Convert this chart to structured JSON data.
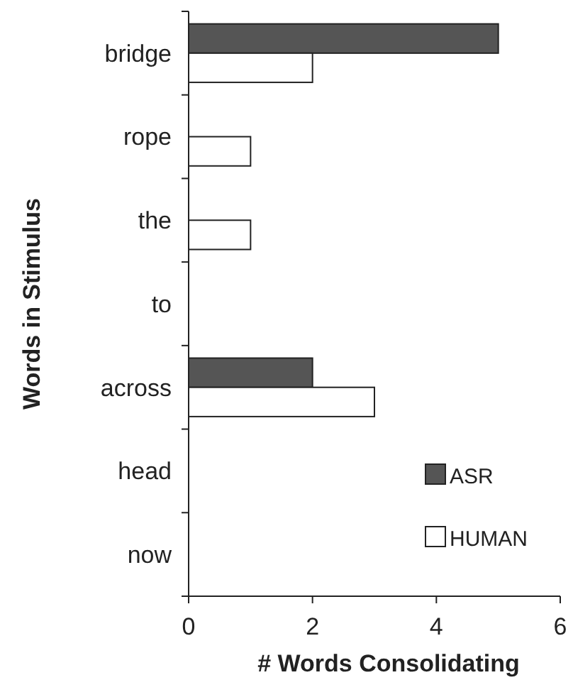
{
  "chart_data": {
    "type": "bar",
    "orientation": "horizontal",
    "xlabel": "# Words Consolidating",
    "ylabel": "Words in Stimulus",
    "categories": [
      "bridge",
      "rope",
      "the",
      "to",
      "across",
      "head",
      "now"
    ],
    "series": [
      {
        "name": "ASR",
        "color": "#555555",
        "values": [
          5,
          0,
          0,
          0,
          2,
          0,
          0
        ]
      },
      {
        "name": "HUMAN",
        "color": "#ffffff",
        "values": [
          2,
          1,
          1,
          0,
          3,
          0,
          0
        ]
      }
    ],
    "xlim": [
      0,
      6
    ],
    "xticks": [
      0,
      2,
      4,
      6
    ],
    "legend": "bottom right"
  }
}
